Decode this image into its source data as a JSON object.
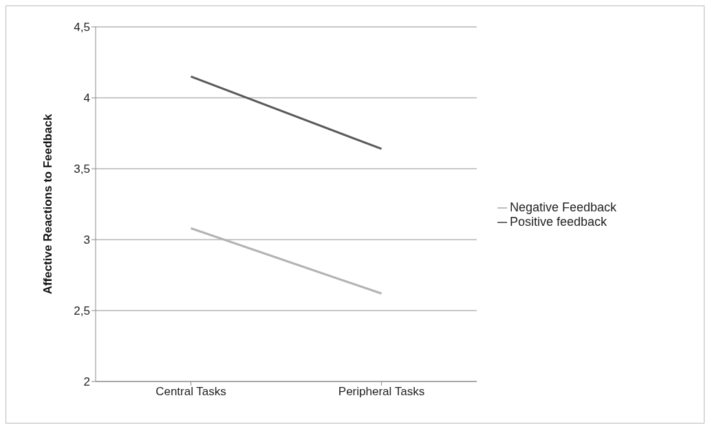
{
  "chart_data": {
    "type": "line",
    "ylabel": "Affective Reactions to Feedback",
    "categories": [
      "Central Tasks",
      "Peripheral Tasks"
    ],
    "series": [
      {
        "name": "Positive feedback",
        "color": "#595959",
        "values": [
          4.15,
          3.64
        ]
      },
      {
        "name": "Negative Feedback",
        "color": "#b3b3b3",
        "values": [
          3.08,
          2.62
        ]
      }
    ],
    "ylim": [
      2,
      4.5
    ],
    "yticks": [
      2,
      {
        "value": 2.5,
        "label": "2,5"
      },
      3,
      {
        "value": 3.5,
        "label": "3,5"
      },
      4,
      {
        "value": 4.5,
        "label": "4,5"
      }
    ],
    "grid": "y",
    "legend": "right",
    "marker": "none",
    "line_style": "solid"
  }
}
